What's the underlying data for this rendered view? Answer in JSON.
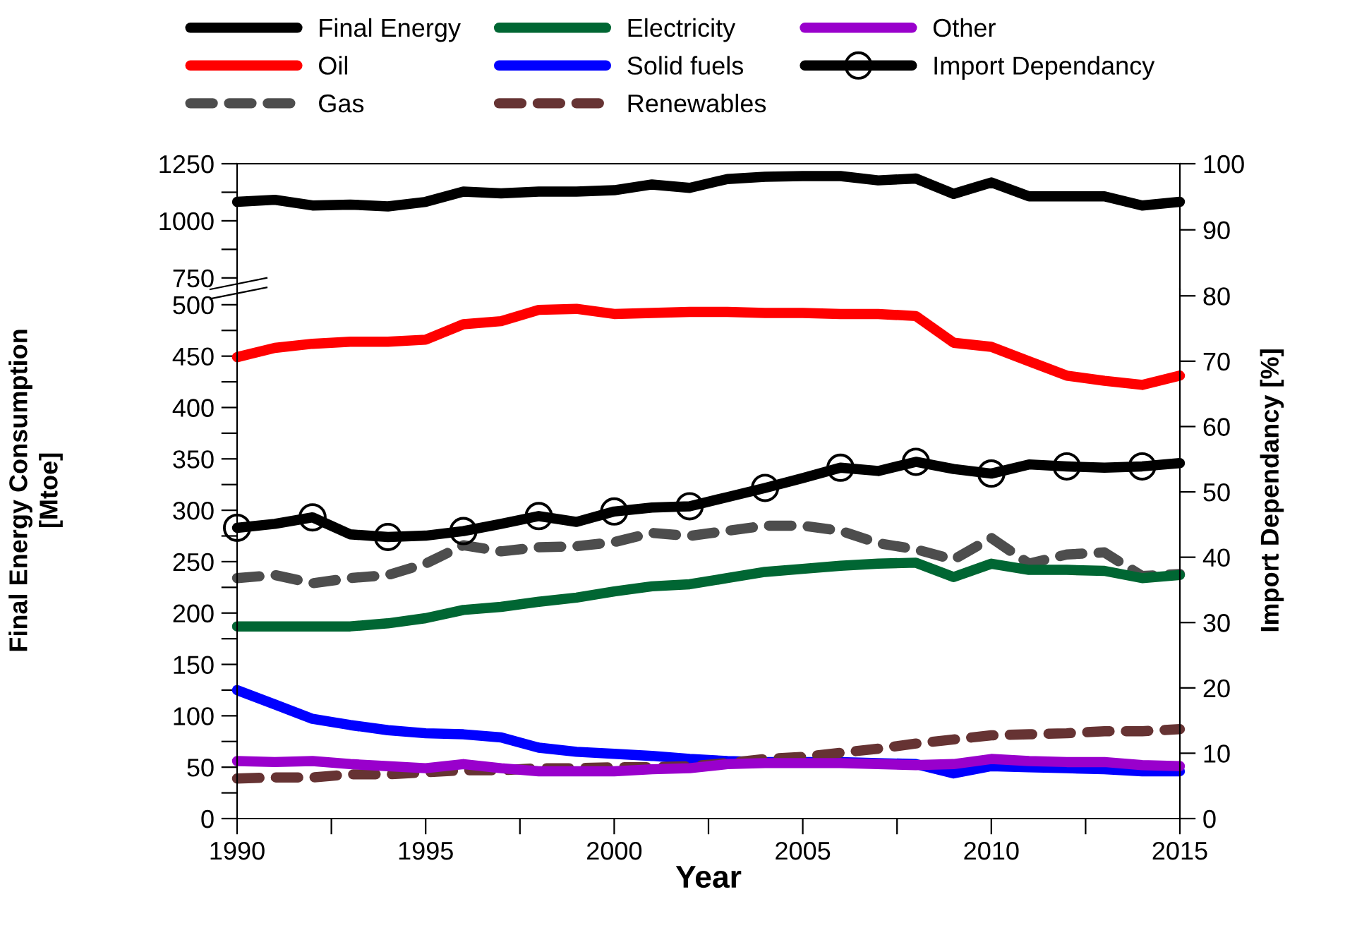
{
  "chart_data": [
    {
      "type": "line",
      "x": [
        1990,
        1991,
        1992,
        1993,
        1994,
        1995,
        1996,
        1997,
        1998,
        1999,
        2000,
        2001,
        2002,
        2003,
        2004,
        2005,
        2006,
        2007,
        2008,
        2009,
        2010,
        2011,
        2012,
        2013,
        2014,
        2015
      ],
      "series": [
        {
          "name": "Final Energy",
          "color": "#000000",
          "values": [
            1083,
            1092,
            1067,
            1071,
            1063,
            1083,
            1128,
            1120,
            1128,
            1128,
            1134,
            1159,
            1144,
            1183,
            1193,
            1196,
            1196,
            1177,
            1185,
            1118,
            1168,
            1107,
            1107,
            1107,
            1067,
            1083
          ]
        }
      ],
      "xlim": [
        1990,
        2015
      ],
      "ylim": [
        700,
        1250
      ],
      "yticks": [
        750,
        {
          "value": 875,
          "label": null
        },
        1000,
        {
          "value": 1125,
          "label": null
        },
        1250
      ],
      "y2lim": [
        81,
        100
      ],
      "y2ticks": [
        90,
        100
      ],
      "tick_labels": "y",
      "legend": "top",
      "grid": false
    },
    {
      "type": "line",
      "x": [
        1990,
        1991,
        1992,
        1993,
        1994,
        1995,
        1996,
        1997,
        1998,
        1999,
        2000,
        2001,
        2002,
        2003,
        2004,
        2005,
        2006,
        2007,
        2008,
        2009,
        2010,
        2011,
        2012,
        2013,
        2014,
        2015
      ],
      "xlabel": "Year",
      "ylabel": "Final Energy Consumption\n[Mtoe]",
      "y2label": "Import Dependancy [%]",
      "series": [
        {
          "name": "Oil",
          "color": "#ff0000",
          "values": [
            449,
            458,
            462,
            464,
            464,
            466,
            481,
            484,
            495,
            496,
            491,
            492,
            493,
            493,
            492,
            492,
            491,
            491,
            489,
            463,
            459,
            445,
            431,
            426,
            422,
            431
          ]
        },
        {
          "name": "Gas",
          "color": "#4d4d4d",
          "line_style": "dashed",
          "values": [
            234,
            237,
            229,
            234,
            237,
            248,
            266,
            260,
            264,
            265,
            269,
            278,
            275,
            280,
            285,
            285,
            280,
            268,
            262,
            252,
            273,
            248,
            257,
            259,
            236,
            238
          ]
        },
        {
          "name": "Electricity",
          "color": "#006633",
          "values": [
            187,
            187,
            187,
            187,
            190,
            195,
            203,
            206,
            211,
            215,
            221,
            226,
            228,
            234,
            240,
            243,
            246,
            248,
            249,
            235,
            248,
            242,
            242,
            241,
            234,
            237
          ]
        },
        {
          "name": "Solid fuels",
          "color": "#0000ff",
          "values": [
            125,
            111,
            97,
            91,
            86,
            83,
            82,
            79,
            69,
            65,
            63,
            61,
            58,
            56,
            55,
            55,
            55,
            54,
            53,
            44,
            51,
            50,
            49,
            48,
            46,
            46
          ]
        },
        {
          "name": "Renewables",
          "color": "#663333",
          "line_style": "dashed",
          "values": [
            39,
            40,
            40,
            43,
            43,
            45,
            47,
            47,
            49,
            49,
            50,
            50,
            51,
            54,
            58,
            60,
            64,
            68,
            73,
            77,
            81,
            82,
            83,
            85,
            85,
            87
          ]
        },
        {
          "name": "Other",
          "color": "#9900cc",
          "values": [
            56,
            55,
            56,
            53,
            51,
            49,
            53,
            49,
            46,
            46,
            46,
            48,
            49,
            53,
            54,
            54,
            54,
            53,
            52,
            53,
            58,
            56,
            55,
            55,
            52,
            51
          ]
        },
        {
          "name": "Import Dependancy",
          "color": "#000000",
          "axis": "y2",
          "marker": "circle",
          "values": [
            44.5,
            45.1,
            46.1,
            43.5,
            43.1,
            43.3,
            44.0,
            45.1,
            46.3,
            45.4,
            47.0,
            47.6,
            47.8,
            49.2,
            50.6,
            52.1,
            53.7,
            53.2,
            54.6,
            53.5,
            52.8,
            54.2,
            53.9,
            53.7,
            53.9,
            54.4
          ]
        }
      ],
      "xlim": [
        1990,
        2015
      ],
      "xticks": [
        1990,
        {
          "value": 1992.5,
          "label": null
        },
        1995,
        {
          "value": 1997.5,
          "label": null
        },
        2000,
        {
          "value": 2002.5,
          "label": null
        },
        2005,
        {
          "value": 2007.5,
          "label": null
        },
        2010,
        {
          "value": 2012.5,
          "label": null
        },
        2015
      ],
      "ylim": [
        0,
        515
      ],
      "yticks": [
        0,
        {
          "value": 25,
          "label": null
        },
        50,
        {
          "value": 75,
          "label": null
        },
        100,
        {
          "value": 125,
          "label": null
        },
        150,
        {
          "value": 175,
          "label": null
        },
        200,
        {
          "value": 225,
          "label": null
        },
        250,
        {
          "value": 275,
          "label": null
        },
        300,
        {
          "value": 325,
          "label": null
        },
        350,
        {
          "value": 375,
          "label": null
        },
        400,
        {
          "value": 425,
          "label": null
        },
        450,
        {
          "value": 475,
          "label": null
        },
        500
      ],
      "y2lim": [
        0,
        81
      ],
      "y2ticks": [
        0,
        10,
        20,
        30,
        40,
        50,
        60,
        70,
        80
      ],
      "legend": "top",
      "grid": false
    }
  ]
}
